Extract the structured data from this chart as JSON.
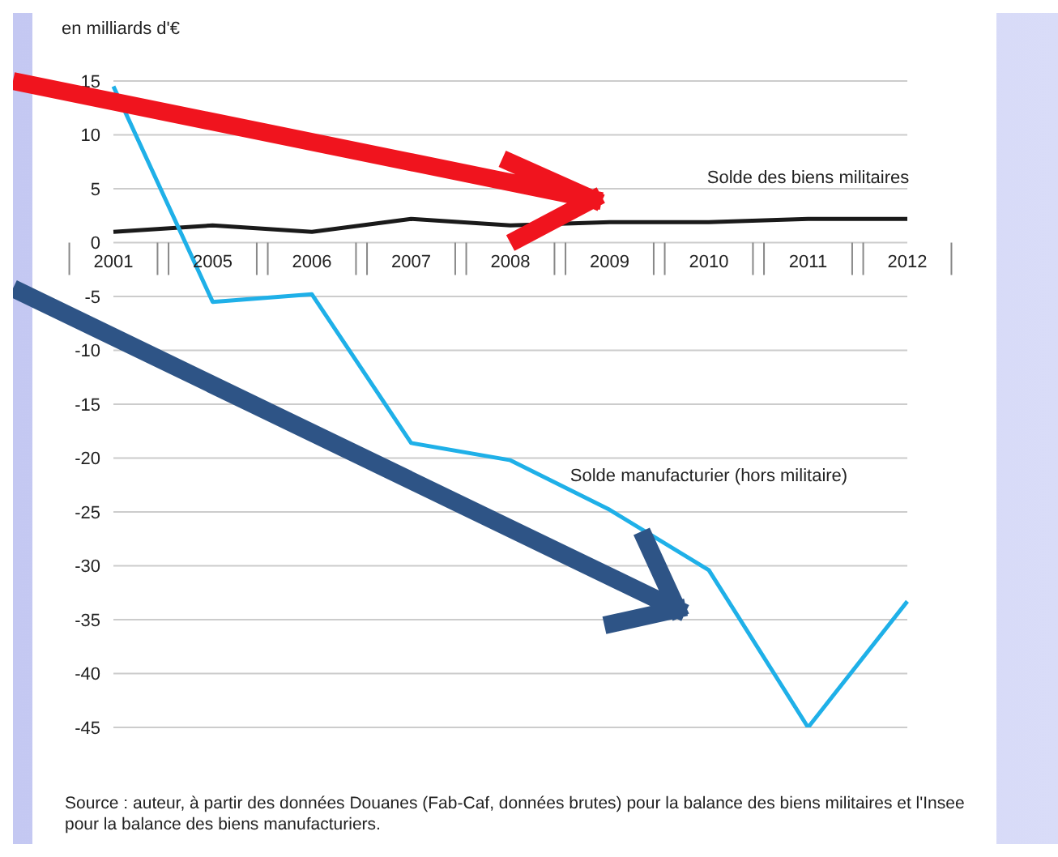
{
  "chart_data": {
    "type": "line",
    "ylabel": "en milliards d'€",
    "categories": [
      "2001",
      "2005",
      "2006",
      "2007",
      "2008",
      "2009",
      "2010",
      "2011",
      "2012"
    ],
    "series": [
      {
        "name": "Solde des biens militaires",
        "color": "#1a1a1a",
        "values": [
          1.0,
          1.6,
          1.0,
          2.2,
          1.6,
          1.9,
          1.9,
          2.2,
          2.2
        ]
      },
      {
        "name": "Solde manufacturier (hors militaire)",
        "color": "#1fb0e8",
        "values": [
          14.5,
          -5.5,
          -4.8,
          -18.6,
          -20.2,
          -24.8,
          -30.4,
          -45,
          -33.3
        ]
      }
    ],
    "ylim": [
      -45,
      15
    ],
    "yticks": [
      15,
      10,
      5,
      0,
      -5,
      -10,
      -15,
      -20,
      -25,
      -30,
      -35,
      -40,
      -45
    ],
    "grid": "y",
    "marker": "none",
    "line_style": "solid",
    "annotations": [
      "Source : auteur, à partir des données Douanes (Fab-Caf, données brutes) pour la balance des biens militaires et l'Insee pour la balance des biens manufacturiers."
    ]
  }
}
